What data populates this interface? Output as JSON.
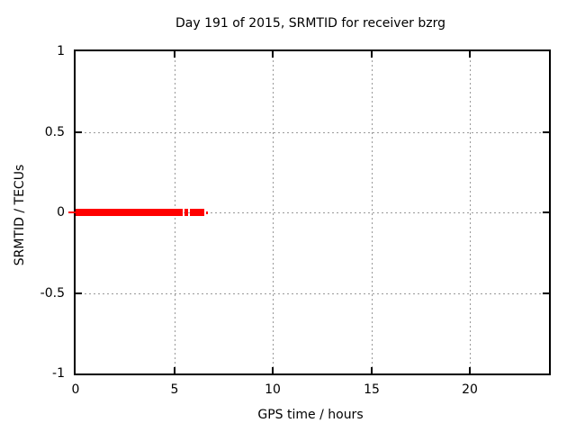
{
  "colors": {
    "data": "#ff0000",
    "grid": "#999999",
    "axis": "#000000",
    "text": "#000000",
    "background": "#ffffff"
  },
  "chart_data": {
    "type": "scatter",
    "title": "Day 191 of 2015, SRMTID for receiver bzrg",
    "xlabel": "GPS time / hours",
    "ylabel": "SRMTID / TECUs",
    "xlim": [
      0,
      24
    ],
    "ylim": [
      -1,
      1
    ],
    "xticks": [
      0,
      5,
      10,
      15,
      20
    ],
    "xtick_labels": [
      "0",
      "5",
      "10",
      "15",
      "20"
    ],
    "yticks": [
      1,
      0.5,
      0,
      -0.5,
      -1
    ],
    "ytick_labels": [
      "1",
      "0.5",
      "0",
      "-0.5",
      "-1"
    ],
    "grid": true,
    "legend": "none",
    "series": [
      {
        "name": "SRMTID",
        "color": "#ff0000",
        "marker": "filled-square",
        "y": 0,
        "description": "Dense horizontal band of points at SRMTID ~ 0 TECUs (spread roughly +/-0.02) from 0 h to about 6.7 h GPS time; no data after ~6.7 h",
        "segments": [
          {
            "x0": 0.0,
            "x1": 5.43,
            "y_spread": 0.022
          },
          {
            "x0": 5.54,
            "x1": 5.72,
            "y_spread": 0.022
          },
          {
            "x0": 5.81,
            "x1": 6.55,
            "y_spread": 0.022
          },
          {
            "x0": 6.63,
            "x1": 6.74,
            "y_spread": 0.008
          }
        ]
      }
    ]
  }
}
